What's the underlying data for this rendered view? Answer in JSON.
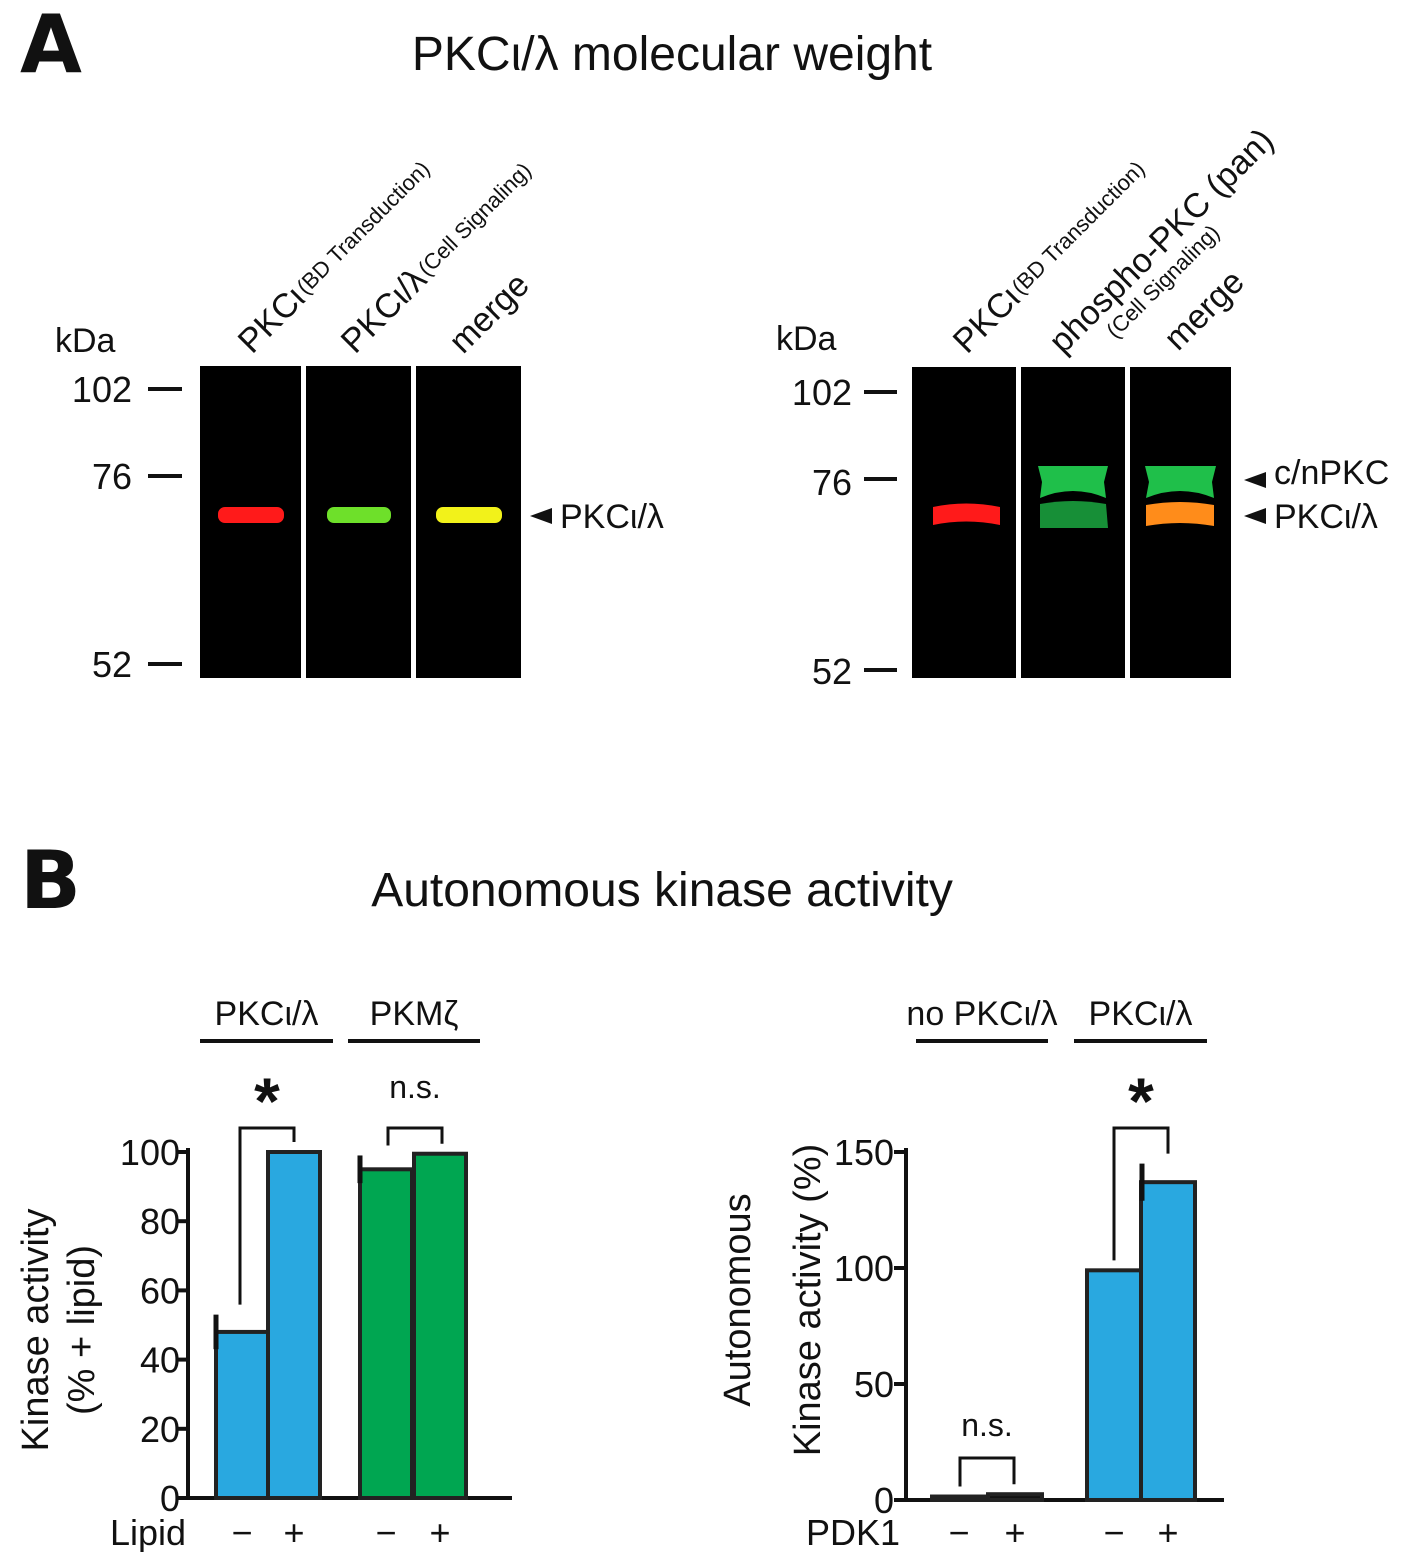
{
  "panel_a": {
    "letter": "A",
    "title": "PKCι/λ molecular weight",
    "kda_label": "kDa",
    "left_blot": {
      "markers": [
        "102",
        "76",
        "52"
      ],
      "lane_labels": [
        {
          "main": "PKCι",
          "sub": "(BD Transduction)"
        },
        {
          "main": "PKCι/λ",
          "sub": "(Cell Signaling)"
        },
        {
          "main": "merge",
          "sub": ""
        }
      ],
      "band_label": "PKCι/λ",
      "band_colors": [
        "#ff1a1a",
        "#6ee02a",
        "#f2f21a"
      ]
    },
    "right_blot": {
      "markers": [
        "102",
        "76",
        "52"
      ],
      "lane_labels": [
        {
          "main": "PKCι",
          "sub": "(BD Transduction)"
        },
        {
          "main": "phospho-PKC (pan)",
          "sub": "(Cell Signaling)"
        },
        {
          "main": "merge",
          "sub": ""
        }
      ],
      "band_labels": [
        "c/nPKC",
        "PKCι/λ"
      ],
      "band_colors": [
        "#ff1a1a",
        "#1fbf4a",
        "#ff8c1a"
      ]
    }
  },
  "panel_b": {
    "letter": "B",
    "title": "Autonomous kinase activity"
  },
  "chart_data": [
    {
      "type": "bar",
      "ylabel": "Kinase activity",
      "ylabel2": "(% + lipid)",
      "ylim": [
        0,
        100
      ],
      "yticks": [
        "0",
        "20",
        "40",
        "60",
        "80",
        "100"
      ],
      "x_factor_label": "Lipid",
      "groups": [
        {
          "name": "PKCι/λ",
          "signif": "*",
          "color": "#29a8e0",
          "bars": [
            {
              "cond": "−",
              "value": 48,
              "err": 5
            },
            {
              "cond": "+",
              "value": 100,
              "err": 0
            }
          ]
        },
        {
          "name": "PKMζ",
          "signif": "n.s.",
          "color": "#00a651",
          "bars": [
            {
              "cond": "−",
              "value": 95,
              "err": 4
            },
            {
              "cond": "+",
              "value": 99.5,
              "err": 0
            }
          ]
        }
      ]
    },
    {
      "type": "bar",
      "ylabel": "Autonomous",
      "ylabel2": "Kinase activity (%)",
      "ylim": [
        0,
        150
      ],
      "yticks": [
        "0",
        "50",
        "100",
        "150"
      ],
      "x_factor_label": "PDK1",
      "groups": [
        {
          "name": "no PKCι/λ",
          "signif": "n.s.",
          "color": "#111111",
          "bars": [
            {
              "cond": "−",
              "value": 1.5,
              "err": 0
            },
            {
              "cond": "+",
              "value": 2.5,
              "err": 0
            }
          ]
        },
        {
          "name": "PKCι/λ",
          "signif": "*",
          "color": "#29a8e0",
          "bars": [
            {
              "cond": "−",
              "value": 99,
              "err": 0
            },
            {
              "cond": "+",
              "value": 137,
              "err": 8
            }
          ]
        }
      ]
    }
  ]
}
